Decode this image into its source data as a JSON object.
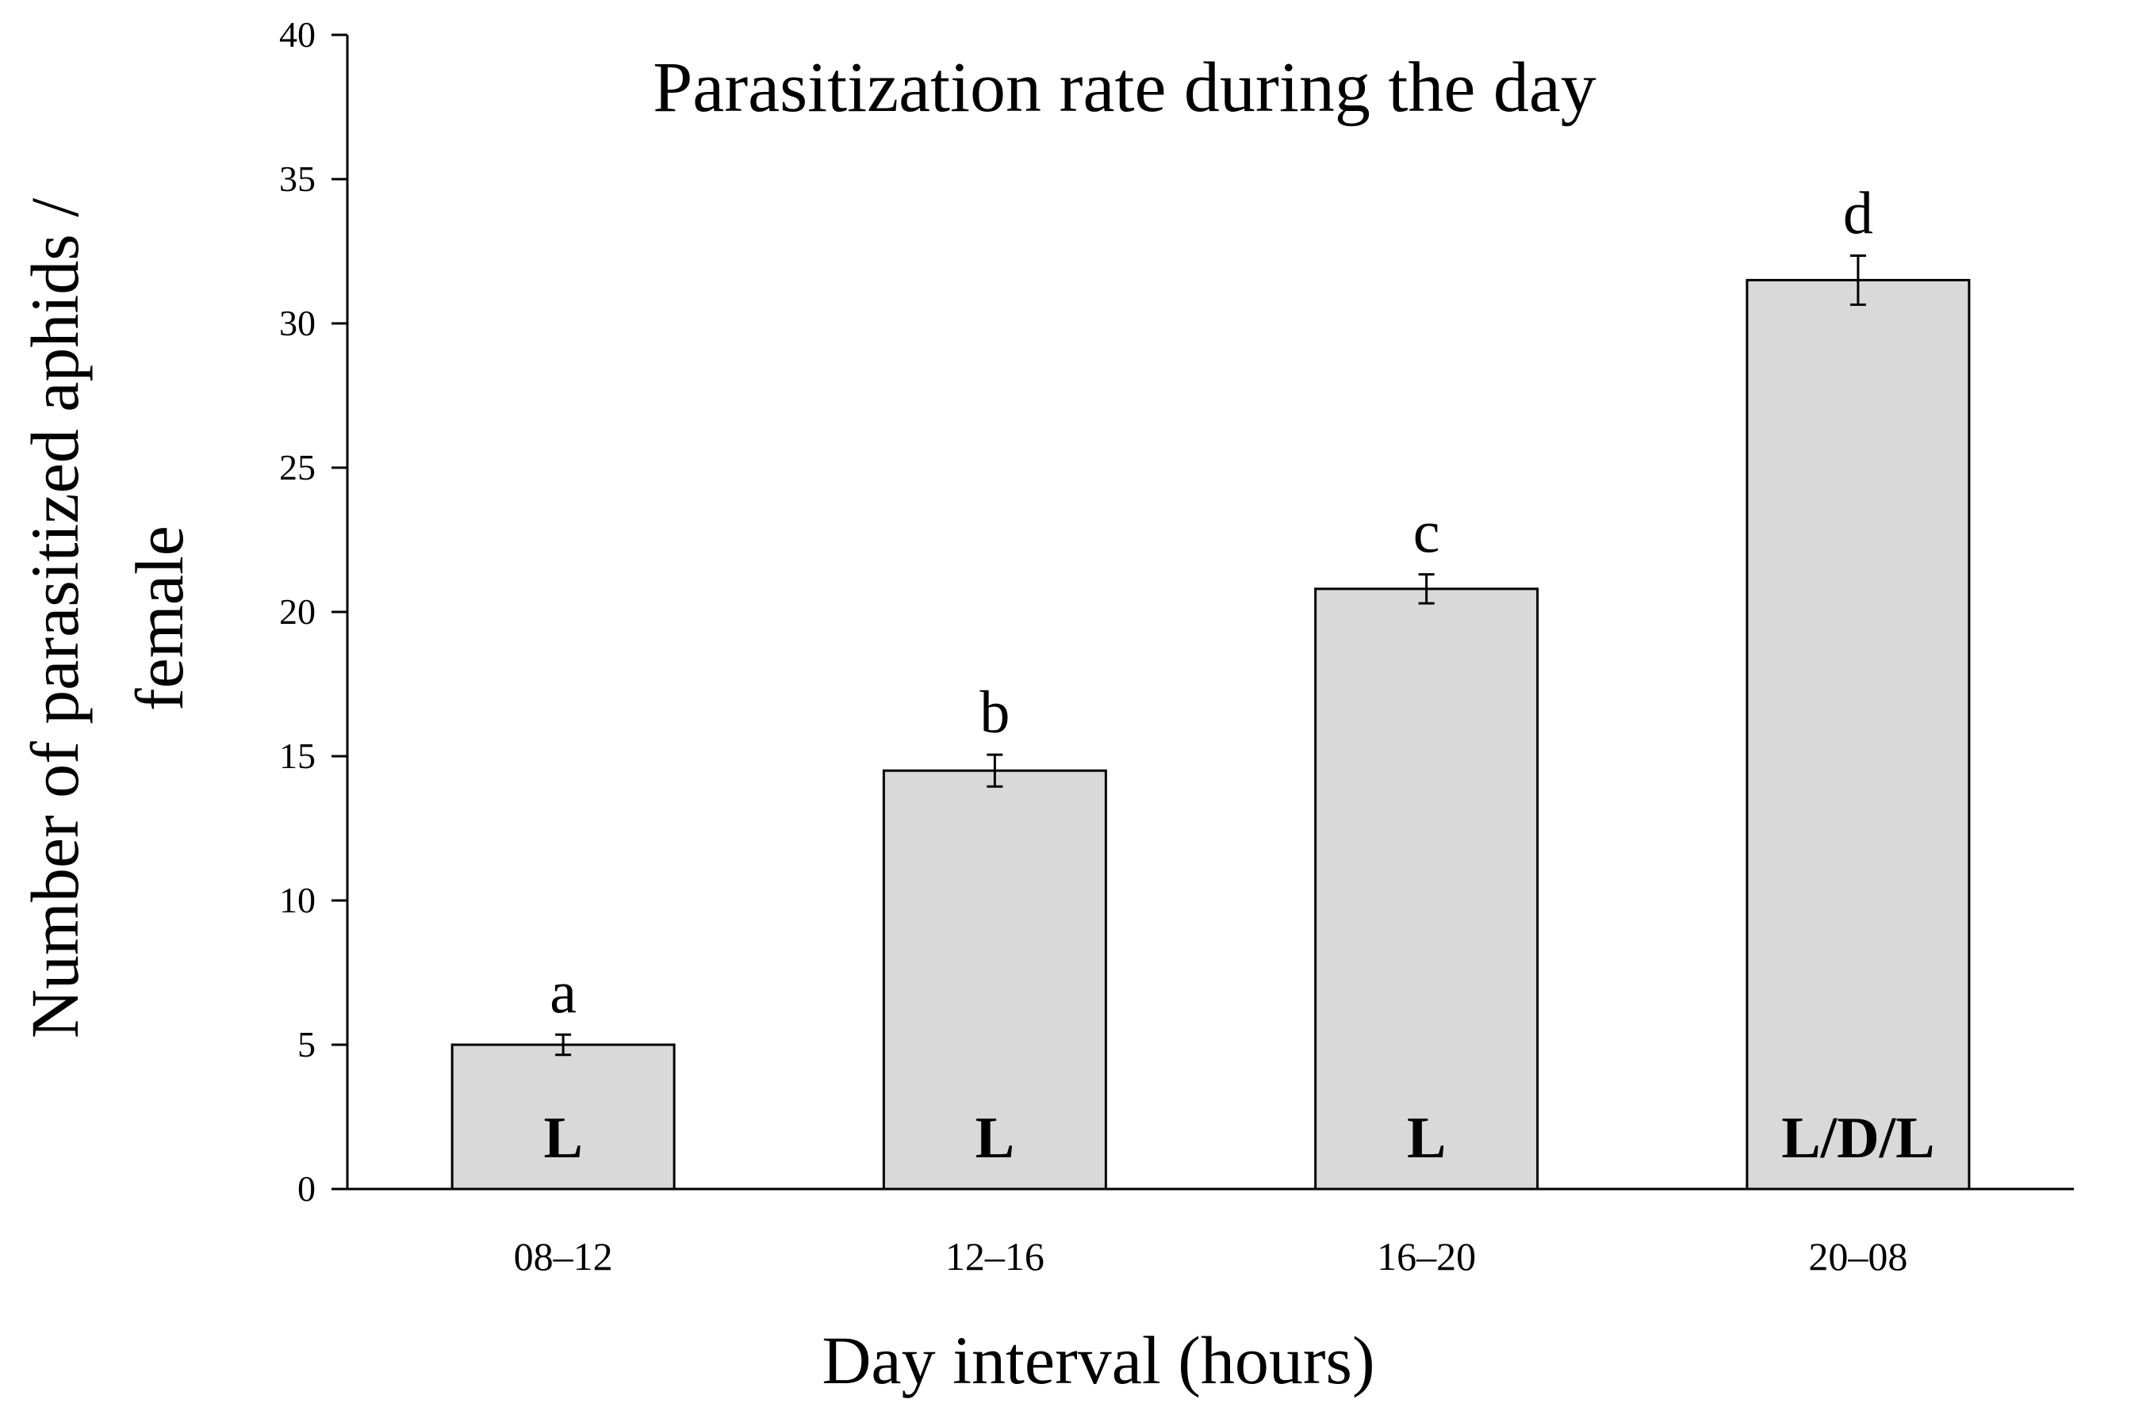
{
  "colors": {
    "bar_fill": "#d9d9d9",
    "bar_stroke": "#000000",
    "axis": "#000000",
    "text": "#000000",
    "background": "#ffffff"
  },
  "chart_data": {
    "type": "bar",
    "title": "Parasitization rate during the day",
    "xlabel": "Day interval (hours)",
    "ylabel_line1": "Number of parasitized aphids /",
    "ylabel_line2": "female",
    "categories": [
      "08–12",
      "12–16",
      "16–20",
      "20–08"
    ],
    "values": [
      5.0,
      14.5,
      20.8,
      31.5
    ],
    "errors": [
      0.35,
      0.55,
      0.5,
      0.85
    ],
    "significance_letters": [
      "a",
      "b",
      "c",
      "d"
    ],
    "bar_labels": [
      "L",
      "L",
      "L",
      "L/D/L"
    ],
    "ylim": [
      0,
      40
    ],
    "yticks": [
      0,
      5,
      10,
      15,
      20,
      25,
      30,
      35,
      40
    ],
    "ytick_labels": [
      "0",
      "5",
      "10",
      "15",
      "20",
      "25",
      "30",
      "35",
      "40"
    ],
    "grid": false,
    "legend": "none"
  }
}
